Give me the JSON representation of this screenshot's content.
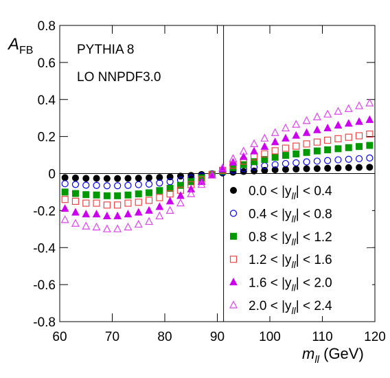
{
  "chart_data": {
    "type": "scatter",
    "ylabel": {
      "main": "A",
      "sub": "FB"
    },
    "xlabel": {
      "main": "m",
      "sub": "ll",
      "rest": " (GeV)"
    },
    "annotations": [
      "PYTHIA 8",
      "LO NNPDF3.0"
    ],
    "xlim": [
      60,
      120
    ],
    "xticks": [
      60,
      70,
      80,
      90,
      100,
      110,
      120
    ],
    "ylim": [
      -0.8,
      0.8
    ],
    "yticks": [
      -0.8,
      -0.6,
      -0.4,
      -0.2,
      0,
      0.2,
      0.4,
      0.6,
      0.8
    ],
    "reference_lines": {
      "x": 91.19,
      "y": 0
    },
    "legend": "lower-right",
    "x": [
      61,
      63,
      65,
      67,
      69,
      71,
      73,
      75,
      77,
      79,
      81,
      83,
      85,
      87,
      89,
      91,
      93,
      95,
      97,
      99,
      101,
      103,
      105,
      107,
      109,
      111,
      113,
      115,
      117,
      119
    ],
    "series": [
      {
        "name": {
          "pre": "0.0 < |y",
          "sub": "ll",
          "post": "| < 0.4"
        },
        "color": "#000000",
        "marker": "circle",
        "filled": true,
        "values": [
          -0.022,
          -0.024,
          -0.026,
          -0.026,
          -0.027,
          -0.027,
          -0.026,
          -0.025,
          -0.023,
          -0.021,
          -0.018,
          -0.014,
          -0.01,
          -0.005,
          -0.001,
          0.003,
          0.007,
          0.011,
          0.014,
          0.017,
          0.02,
          0.022,
          0.024,
          0.026,
          0.027,
          0.029,
          0.03,
          0.032,
          0.033,
          0.034
        ]
      },
      {
        "name": {
          "pre": "0.4 < |y",
          "sub": "ll",
          "post": "| < 0.8"
        },
        "color": "#0000ee",
        "marker": "circle",
        "filled": false,
        "values": [
          -0.055,
          -0.059,
          -0.063,
          -0.064,
          -0.066,
          -0.066,
          -0.064,
          -0.06,
          -0.057,
          -0.051,
          -0.044,
          -0.035,
          -0.024,
          -0.013,
          -0.002,
          0.007,
          0.018,
          0.026,
          0.035,
          0.042,
          0.048,
          0.054,
          0.058,
          0.063,
          0.067,
          0.07,
          0.074,
          0.077,
          0.08,
          0.084
        ]
      },
      {
        "name": {
          "pre": "0.8 < |y",
          "sub": "ll",
          "post": "| < 1.2"
        },
        "color": "#009900",
        "marker": "square",
        "filled": true,
        "values": [
          -0.1,
          -0.108,
          -0.114,
          -0.116,
          -0.12,
          -0.12,
          -0.116,
          -0.11,
          -0.104,
          -0.092,
          -0.08,
          -0.064,
          -0.044,
          -0.024,
          -0.004,
          0.012,
          0.032,
          0.048,
          0.064,
          0.076,
          0.088,
          0.098,
          0.106,
          0.114,
          0.122,
          0.128,
          0.134,
          0.14,
          0.146,
          0.152
        ]
      },
      {
        "name": {
          "pre": "1.2 < |y",
          "sub": "ll",
          "post": "| < 1.6"
        },
        "color": "#ee4444",
        "marker": "square",
        "filled": false,
        "values": [
          -0.14,
          -0.15,
          -0.16,
          -0.16,
          -0.17,
          -0.17,
          -0.16,
          -0.155,
          -0.145,
          -0.13,
          -0.11,
          -0.09,
          -0.06,
          -0.034,
          -0.006,
          0.017,
          0.045,
          0.067,
          0.09,
          0.106,
          0.123,
          0.137,
          0.148,
          0.16,
          0.17,
          0.18,
          0.188,
          0.196,
          0.204,
          0.213
        ]
      },
      {
        "name": {
          "pre": "1.6 < |y",
          "sub": "ll",
          "post": "| < 2.0"
        },
        "color": "#cc00ee",
        "marker": "triangle",
        "filled": true,
        "values": [
          -0.19,
          -0.21,
          -0.22,
          -0.22,
          -0.23,
          -0.23,
          -0.22,
          -0.21,
          -0.2,
          -0.18,
          -0.15,
          -0.12,
          -0.085,
          -0.045,
          -0.008,
          0.023,
          0.06,
          0.09,
          0.12,
          0.145,
          0.17,
          0.19,
          0.205,
          0.22,
          0.235,
          0.245,
          0.26,
          0.27,
          0.28,
          0.29
        ]
      },
      {
        "name": {
          "pre": "2.0 < |y",
          "sub": "ll",
          "post": "| < 2.4"
        },
        "color": "#dd44ee",
        "marker": "triangle",
        "filled": false,
        "values": [
          -0.25,
          -0.27,
          -0.285,
          -0.29,
          -0.3,
          -0.3,
          -0.29,
          -0.275,
          -0.26,
          -0.23,
          -0.2,
          -0.16,
          -0.11,
          -0.06,
          -0.01,
          0.03,
          0.08,
          0.12,
          0.16,
          0.19,
          0.22,
          0.245,
          0.265,
          0.285,
          0.305,
          0.32,
          0.335,
          0.35,
          0.365,
          0.38
        ]
      }
    ]
  }
}
